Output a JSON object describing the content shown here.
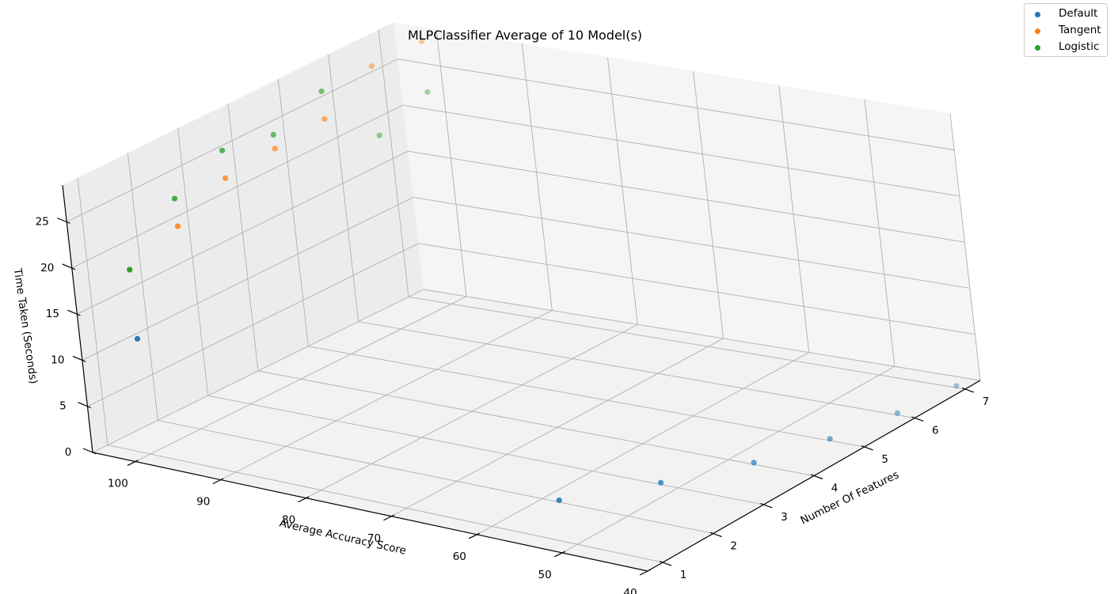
{
  "chart_data": {
    "type": "scatter",
    "title": "MLPClassifier Average of 10 Model(s)",
    "xlabel": "Average Accuracy Score",
    "ylabel": "Number Of Features",
    "zlabel": "Time Taken (Seconds)",
    "x_ticks": [
      100,
      90,
      80,
      70,
      60,
      50,
      40
    ],
    "y_ticks": [
      1,
      2,
      3,
      4,
      5,
      6,
      7
    ],
    "z_ticks": [
      0,
      5,
      10,
      15,
      20,
      25
    ],
    "xlim": [
      40,
      105
    ],
    "ylim": [
      0.7,
      7.3
    ],
    "zlim": [
      0,
      29
    ],
    "grid": true,
    "legend_position": "top-right",
    "series": [
      {
        "name": "Default",
        "color": "#1f77b4",
        "points": [
          {
            "accuracy": 100,
            "features": 1,
            "time": 12.5
          },
          {
            "accuracy": 58,
            "features": 2,
            "time": 0.2
          },
          {
            "accuracy": 52,
            "features": 3,
            "time": 0.2
          },
          {
            "accuracy": 47,
            "features": 4,
            "time": 0.2
          },
          {
            "accuracy": 44,
            "features": 5,
            "time": 0.2
          },
          {
            "accuracy": 42,
            "features": 6,
            "time": 0.2
          },
          {
            "accuracy": 41,
            "features": 7,
            "time": 0.2
          }
        ]
      },
      {
        "name": "Tangent",
        "color": "#ff7f0e",
        "points": [
          {
            "accuracy": 100,
            "features": 1,
            "time": 20
          },
          {
            "accuracy": 100,
            "features": 2,
            "time": 22
          },
          {
            "accuracy": 100,
            "features": 3,
            "time": 24.5
          },
          {
            "accuracy": 100,
            "features": 4,
            "time": 25
          },
          {
            "accuracy": 100,
            "features": 5,
            "time": 25.5
          },
          {
            "accuracy": 100,
            "features": 6,
            "time": 28.5
          },
          {
            "accuracy": 100,
            "features": 7,
            "time": 28.5
          }
        ]
      },
      {
        "name": "Logistic",
        "color": "#2ca02c",
        "points": [
          {
            "accuracy": 100,
            "features": 1,
            "time": 20
          },
          {
            "accuracy": 100,
            "features": 2,
            "time": 25
          },
          {
            "accuracy": 100,
            "features": 3,
            "time": 27.5
          },
          {
            "accuracy": 100,
            "features": 4,
            "time": 26.5
          },
          {
            "accuracy": 100,
            "features": 5,
            "time": 28.5
          },
          {
            "accuracy": 100,
            "features": 6,
            "time": 21
          },
          {
            "accuracy": 100,
            "features": 7,
            "time": 23
          }
        ]
      }
    ]
  }
}
